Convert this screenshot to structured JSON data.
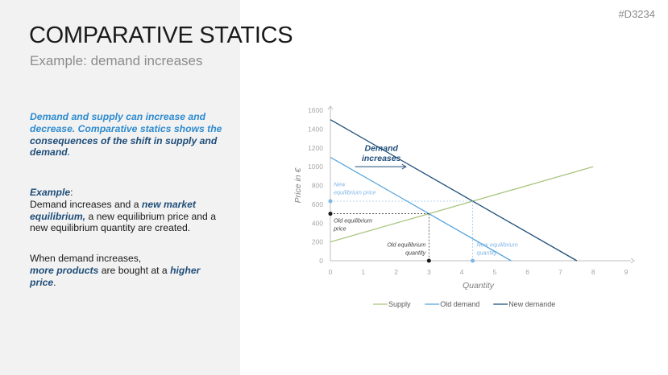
{
  "slide_id": "#D3234",
  "title": "COMPARATIVE STATICS",
  "subtitle": "Example: demand increases",
  "intro": {
    "part1": "Demand and supply can increase and decrease. Comparative statics shows the ",
    "part2": "consequences of the shift in supply and demand",
    "part3": "."
  },
  "example": {
    "heading": "Example",
    "colon": ":",
    "t1": "Demand increases and a ",
    "t2": "new market equilibrium,",
    "t3": " a new equilibrium price and a new equilibrium quantity are created."
  },
  "when": {
    "t1": "When demand increases,",
    "t2": "more products",
    "t3": " are bought at a ",
    "t4": "higher price",
    "t5": "."
  },
  "chart_data": {
    "type": "line",
    "xlabel": "Quantity",
    "ylabel": "Price in €",
    "xlim": [
      0,
      9
    ],
    "ylim": [
      0,
      1600
    ],
    "xticks": [
      "0",
      "1",
      "2",
      "3",
      "4",
      "5",
      "6",
      "7",
      "8",
      "9"
    ],
    "yticks": [
      "0",
      "200",
      "400",
      "600",
      "800",
      "1000",
      "1200",
      "1400",
      "1600"
    ],
    "series": [
      {
        "name": "Supply",
        "color": "#a9c47f",
        "x": [
          0,
          8
        ],
        "y": [
          200,
          1000
        ]
      },
      {
        "name": "Old demand",
        "color": "#5aa5dc",
        "x": [
          0,
          5.5
        ],
        "y": [
          1100,
          0
        ]
      },
      {
        "name": "New demande",
        "color": "#1f4e79",
        "x": [
          0,
          7.5
        ],
        "y": [
          1500,
          0
        ]
      }
    ],
    "points": {
      "old_price": {
        "x": 0,
        "y": 500
      },
      "old_quantity": {
        "x": 3,
        "y": 0
      },
      "new_price": {
        "x": 0,
        "y": 633
      },
      "new_quantity": {
        "x": 4.33,
        "y": 0
      },
      "old_eq": {
        "x": 3,
        "y": 500
      },
      "new_eq": {
        "x": 4.33,
        "y": 633
      }
    },
    "annotations": {
      "demand_increases_line1": "Demand",
      "demand_increases_line2": "increases",
      "new_eq_price_1": "New",
      "new_eq_price_2": "equilibrium price",
      "old_eq_price_1": "Old equilibrium",
      "old_eq_price_2": "price",
      "old_eq_qty_1": "Old equilibrium",
      "old_eq_qty_2": "quantity",
      "new_eq_qty_1": "New equilibrium",
      "new_eq_qty_2": "quantity"
    },
    "legend_position": "bottom",
    "grid": false
  },
  "colors": {
    "panel": "#f2f2f2",
    "accent_light": "#2e8bd0",
    "accent_dark": "#1f4e79",
    "axis": "#bfbfbf"
  }
}
